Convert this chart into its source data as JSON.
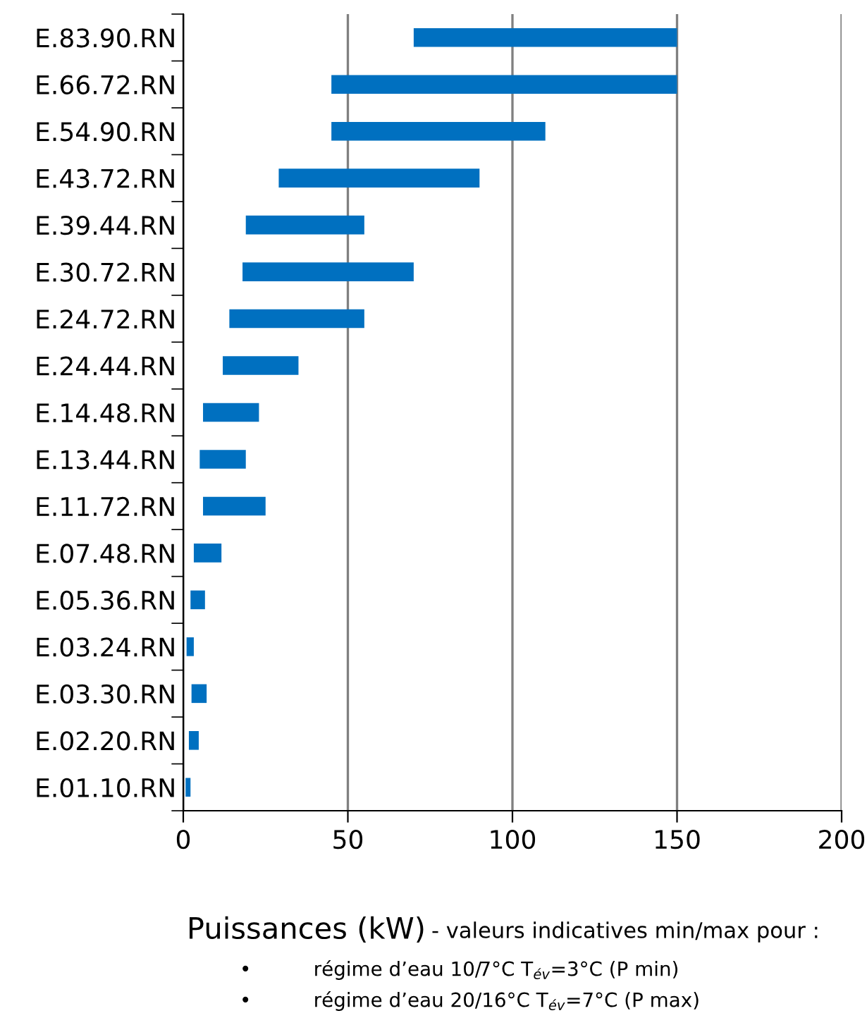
{
  "chart_data": {
    "type": "bar",
    "orientation": "horizontal",
    "categories": [
      "E.83.90.RN",
      "E.66.72.RN",
      "E.54.90.RN",
      "E.43.72.RN",
      "E.39.44.RN",
      "E.30.72.RN",
      "E.24.72.RN",
      "E.24.44.RN",
      "E.14.48.RN",
      "E.13.44.RN",
      "E.11.72.RN",
      "E.07.48.RN",
      "E.05.36.RN",
      "E.03.24.RN",
      "E.03.30.RN",
      "E.02.20.RN",
      "E.01.10.RN"
    ],
    "base": [
      70,
      45,
      45,
      29,
      19,
      18,
      14,
      12,
      6,
      5,
      6,
      3.2,
      2.2,
      1,
      2.5,
      1.7,
      0.7
    ],
    "values": [
      80,
      105,
      65,
      61,
      36,
      52,
      41,
      23,
      17,
      14,
      19,
      8.4,
      4.4,
      2.2,
      4.6,
      3,
      1.5
    ],
    "color": "#0070c0",
    "xlim": [
      0,
      200
    ],
    "xticks": [
      0,
      50,
      100,
      150,
      200
    ],
    "grid": "x",
    "xlabel": "Puissances (kW)",
    "annotations": [
      "- valeurs indicatives min/max pour :",
      "•          régime d’eau 10/7°C T$_{év}$=3°C (P min)",
      "•          régime d’eau 20/16°C T$_{év}$=7°C (P max)"
    ]
  }
}
